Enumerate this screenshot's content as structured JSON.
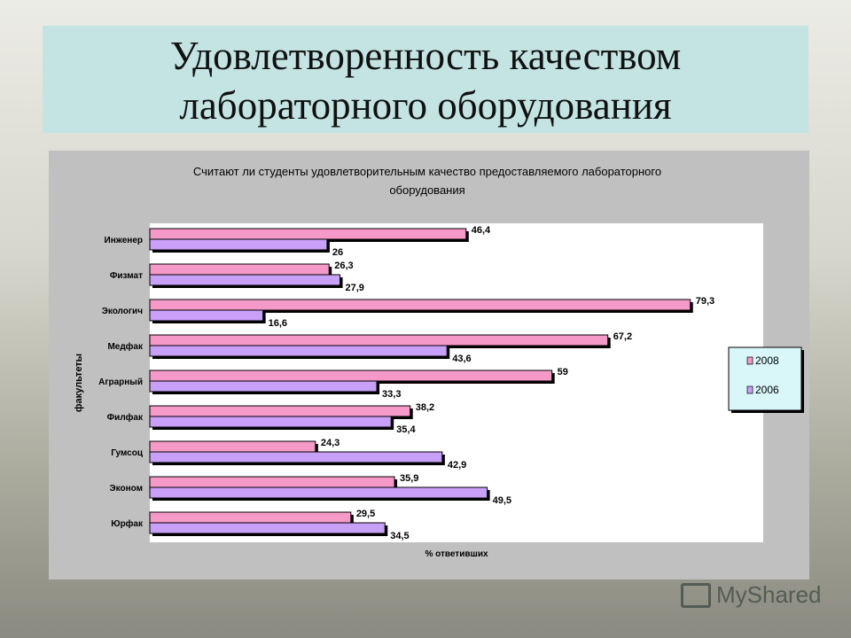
{
  "slide": {
    "title_line1": "Удовлетворенность качеством",
    "title_line2": "лабораторного оборудования",
    "watermark": "MyShared"
  },
  "chart_data": {
    "type": "bar",
    "orientation": "horizontal",
    "title_line1": "Считают ли студенты удовлетворительным качество предоставляемого лабораторного",
    "title_line2": "оборудования",
    "xlabel": "% ответивших",
    "ylabel": "факультеты",
    "xlim": [
      0,
      90
    ],
    "grid": false,
    "legend": "right",
    "categories": [
      "Инженер",
      "Физмат",
      "Экологич",
      "Медфак",
      "Аграрный",
      "Филфак",
      "Гумсоц",
      "Эконом",
      "Юрфак"
    ],
    "series": [
      {
        "name": "2008",
        "color": "#f59ac8",
        "values": [
          46.4,
          26.3,
          79.3,
          67.2,
          59,
          38.2,
          24.3,
          35.9,
          29.5
        ],
        "labels": [
          "46,4",
          "26,3",
          "79,3",
          "67,2",
          "59",
          "38,2",
          "24,3",
          "35,9",
          "29,5"
        ]
      },
      {
        "name": "2006",
        "color": "#c8a0f8",
        "values": [
          26,
          27.9,
          16.6,
          43.6,
          33.3,
          35.4,
          42.9,
          49.5,
          34.5
        ],
        "labels": [
          "26",
          "27,9",
          "16,6",
          "43,6",
          "33,3",
          "35,4",
          "42,9",
          "49,5",
          "34,5"
        ]
      }
    ]
  }
}
